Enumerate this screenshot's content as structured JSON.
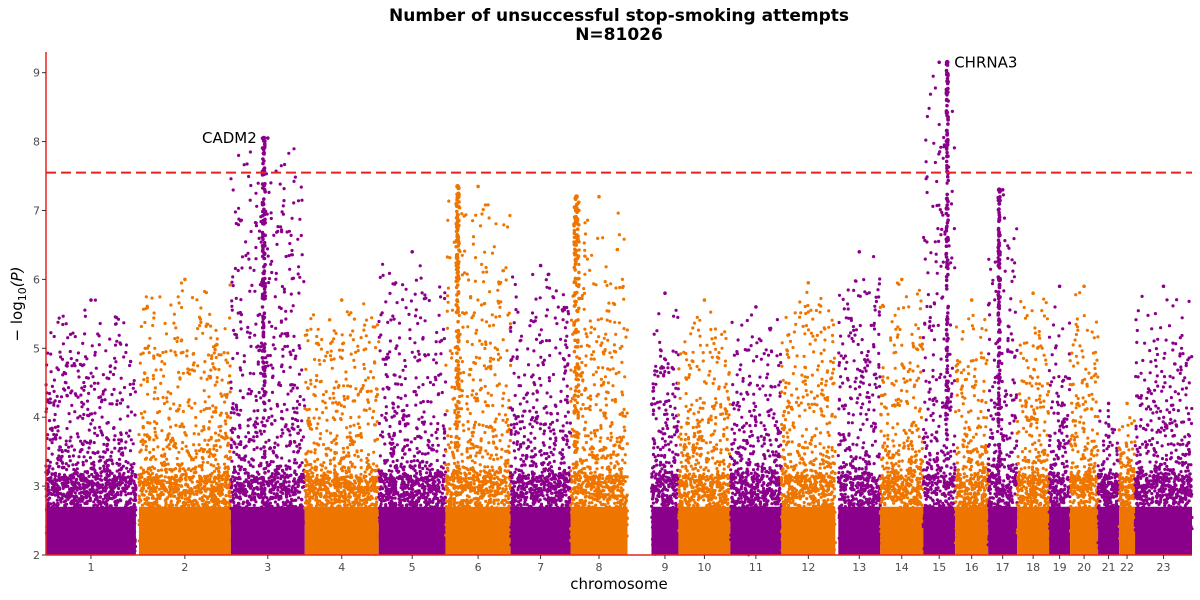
{
  "chart_data": {
    "type": "scatter",
    "subtype": "manhattan",
    "title": "Number of unsuccessful stop-smoking attempts",
    "subtitle": "N=81026",
    "xlabel": "chromosome",
    "ylabel_main": "− log",
    "ylabel_sub": "10",
    "ylabel_tail": "(P)",
    "ylim": [
      2,
      9.3
    ],
    "y_ticks": [
      "2",
      "3",
      "4",
      "5",
      "6",
      "7",
      "8",
      "9"
    ],
    "significance_line": 7.55,
    "colors": {
      "odd": "#8b008b",
      "even": "#ee7600",
      "threshold": "#e8231e",
      "axis": "#e8231e"
    },
    "chromosomes": [
      {
        "label": "1",
        "start": 0,
        "end": 90,
        "peak": 5.7
      },
      {
        "label": "2",
        "start": 93,
        "end": 185,
        "peak": 6.0
      },
      {
        "label": "3",
        "start": 185,
        "end": 259,
        "peak": 8.05
      },
      {
        "label": "4",
        "start": 259,
        "end": 333,
        "peak": 5.7
      },
      {
        "label": "5",
        "start": 333,
        "end": 400,
        "peak": 6.4
      },
      {
        "label": "6",
        "start": 400,
        "end": 465,
        "peak": 7.35
      },
      {
        "label": "7",
        "start": 465,
        "end": 525,
        "peak": 6.2
      },
      {
        "label": "8",
        "start": 525,
        "end": 582,
        "peak": 7.2
      },
      {
        "label": "9",
        "start": 606,
        "end": 633,
        "peak": 5.8
      },
      {
        "label": "10",
        "start": 633,
        "end": 685,
        "peak": 5.7
      },
      {
        "label": "11",
        "start": 685,
        "end": 736,
        "peak": 5.6
      },
      {
        "label": "12",
        "start": 736,
        "end": 790,
        "peak": 5.95
      },
      {
        "label": "13",
        "start": 793,
        "end": 835,
        "peak": 6.4
      },
      {
        "label": "14",
        "start": 835,
        "end": 878,
        "peak": 6.0
      },
      {
        "label": "15",
        "start": 878,
        "end": 910,
        "peak": 9.15
      },
      {
        "label": "16",
        "start": 910,
        "end": 943,
        "peak": 5.7
      },
      {
        "label": "17",
        "start": 943,
        "end": 972,
        "peak": 7.3
      },
      {
        "label": "18",
        "start": 972,
        "end": 1004,
        "peak": 5.8
      },
      {
        "label": "19",
        "start": 1004,
        "end": 1025,
        "peak": 5.9
      },
      {
        "label": "20",
        "start": 1025,
        "end": 1053,
        "peak": 5.9
      },
      {
        "label": "21",
        "start": 1053,
        "end": 1074,
        "peak": 4.2
      },
      {
        "label": "22",
        "start": 1074,
        "end": 1090,
        "peak": 4.2
      },
      {
        "label": "23",
        "start": 1090,
        "end": 1147,
        "peak": 5.9
      }
    ],
    "x_range": [
      0,
      1147
    ],
    "peaks": [
      {
        "chr": "3",
        "pos": 218,
        "top": 8.05,
        "width": 1.5
      },
      {
        "chr": "6",
        "pos": 412,
        "top": 7.35,
        "width": 1.5
      },
      {
        "chr": "8",
        "pos": 531,
        "top": 7.2,
        "width": 2.5
      },
      {
        "chr": "15",
        "pos": 902,
        "top": 9.15,
        "width": 1.0
      },
      {
        "chr": "17",
        "pos": 954,
        "top": 7.3,
        "width": 1.0
      }
    ],
    "annotations": [
      {
        "text": "CADM2",
        "chr": "3",
        "pos": 218,
        "y": 8.05,
        "side": "left"
      },
      {
        "text": "CHRNA3",
        "chr": "15",
        "pos": 902,
        "y": 9.15,
        "side": "right"
      }
    ]
  }
}
